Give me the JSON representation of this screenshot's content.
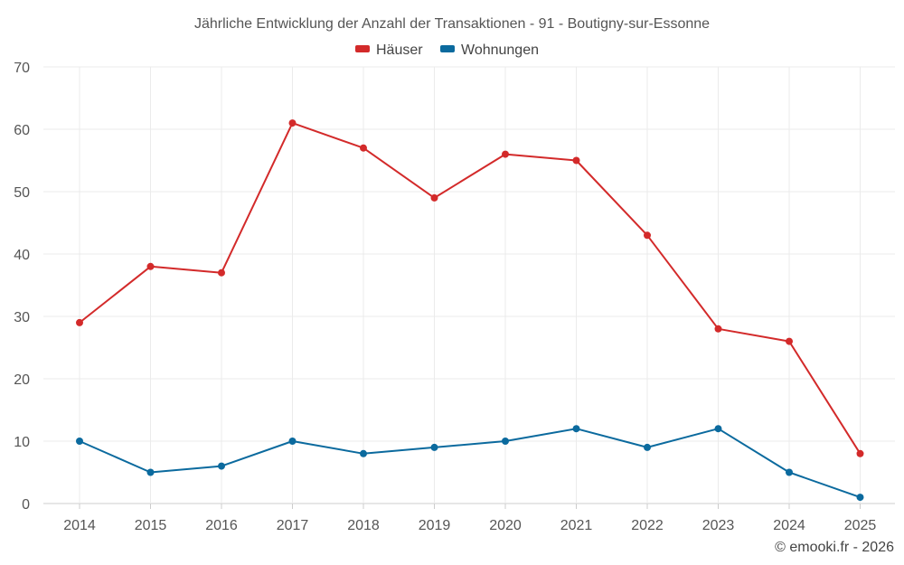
{
  "chart_data": {
    "type": "line",
    "title": "Jährliche Entwicklung der Anzahl der Transaktionen - 91 - Boutigny-sur-Essonne",
    "categories": [
      "2014",
      "2015",
      "2016",
      "2017",
      "2018",
      "2019",
      "2020",
      "2021",
      "2022",
      "2023",
      "2024",
      "2025"
    ],
    "series": [
      {
        "name": "Häuser",
        "color": "#d32a2a",
        "values": [
          29,
          38,
          37,
          61,
          57,
          49,
          56,
          55,
          43,
          28,
          26,
          8
        ]
      },
      {
        "name": "Wohnungen",
        "color": "#0b6a9e",
        "values": [
          10,
          5,
          6,
          10,
          8,
          9,
          10,
          12,
          9,
          12,
          5,
          1
        ]
      }
    ],
    "ylim": [
      0,
      70
    ],
    "yticks": [
      0,
      10,
      20,
      30,
      40,
      50,
      60,
      70
    ],
    "xlabel": "",
    "ylabel": "",
    "grid": true,
    "legend_position": "top-center"
  },
  "credit": "© emooki.fr - 2026"
}
